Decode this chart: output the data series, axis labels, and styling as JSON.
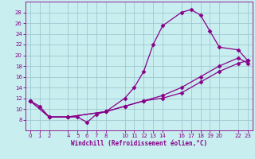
{
  "xlabel": "Windchill (Refroidissement éolien,°C)",
  "bg_color": "#c8eef0",
  "grid_color": "#a0c8d0",
  "line_color": "#880088",
  "ylim": [
    6,
    30
  ],
  "xlim": [
    -0.5,
    23.5
  ],
  "yticks": [
    8,
    10,
    12,
    14,
    16,
    18,
    20,
    22,
    24,
    26,
    28
  ],
  "xticks": [
    0,
    1,
    2,
    4,
    5,
    6,
    7,
    8,
    10,
    11,
    12,
    13,
    14,
    16,
    17,
    18,
    19,
    20,
    22,
    23
  ],
  "line1_x": [
    0,
    1,
    2,
    4,
    5,
    6,
    7,
    8,
    10,
    11,
    12,
    13,
    14,
    16,
    17,
    18,
    19,
    20,
    22,
    23
  ],
  "line1_y": [
    11.5,
    10.5,
    8.5,
    8.5,
    8.5,
    7.5,
    9.0,
    9.5,
    12.0,
    14.0,
    17.0,
    22.0,
    25.5,
    28.0,
    28.5,
    27.5,
    24.5,
    21.5,
    21.0,
    19.0
  ],
  "line2_x": [
    0,
    2,
    4,
    8,
    10,
    12,
    14,
    16,
    18,
    20,
    22,
    23
  ],
  "line2_y": [
    11.5,
    8.5,
    8.5,
    9.5,
    10.5,
    11.5,
    12.5,
    14.0,
    16.0,
    18.0,
    19.5,
    18.5
  ],
  "line3_x": [
    0,
    2,
    4,
    8,
    10,
    12,
    14,
    16,
    18,
    20,
    22,
    23
  ],
  "line3_y": [
    11.5,
    8.5,
    8.5,
    9.5,
    10.5,
    11.5,
    12.0,
    13.0,
    15.0,
    17.0,
    18.5,
    19.0
  ]
}
